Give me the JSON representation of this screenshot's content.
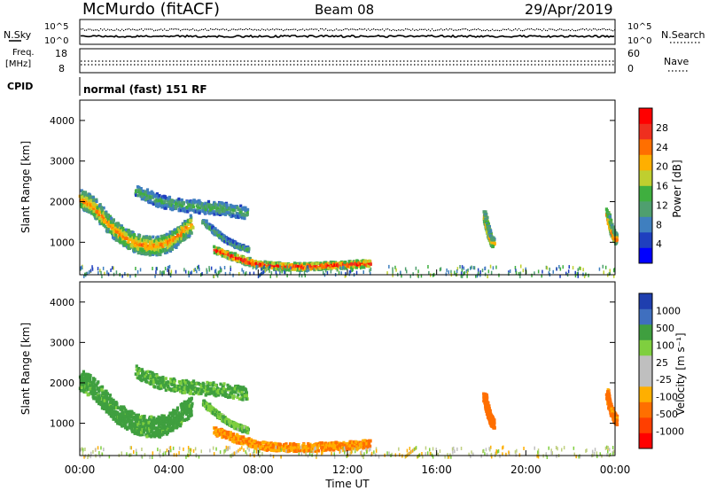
{
  "header": {
    "station": "McMurdo (fitACF)",
    "beam": "Beam 08",
    "date": "29/Apr/2019"
  },
  "top_panels": {
    "nsky_label": "N.Sky",
    "nsky_ticks": [
      "10^5",
      "10^0"
    ],
    "nsearch_label": "N.Search",
    "nsearch_ticks": [
      "10^5",
      "10^0"
    ],
    "freq_label": [
      "Freq.",
      "[MHz]"
    ],
    "freq_ticks": [
      "18",
      "8"
    ],
    "nave_label": "Nave",
    "nave_ticks": [
      "60",
      "0"
    ],
    "cpid_label": "CPID",
    "cpid_text": "normal (fast) 151 RF"
  },
  "colors": {
    "power_scale": [
      "#0000ff",
      "#1f3fbf",
      "#3f7fbf",
      "#4f9f6f",
      "#3faf3f",
      "#bfcf2f",
      "#ffaf00",
      "#ff6f00",
      "#ef2f1f",
      "#ff0000"
    ],
    "velocity_scale": [
      "#ff0000",
      "#ff3f00",
      "#ff6f00",
      "#ffaf00",
      "#bfbfbf",
      "#bfbfbf",
      "#7fcf3f",
      "#3f9f3f",
      "#3f6fbf",
      "#1f3faf"
    ]
  },
  "chart_data": [
    {
      "type": "heatmap",
      "name": "Power",
      "ylabel": "Slant Range [km]",
      "ylim": [
        200,
        4500
      ],
      "yticks": [
        "1000",
        "2000",
        "3000",
        "4000"
      ],
      "xlim": [
        0,
        24
      ],
      "colorbar_label": "Power [dB]",
      "colorbar_ticks": [
        "4",
        "8",
        "12",
        "16",
        "20",
        "24",
        "28"
      ],
      "clim": [
        0,
        32
      ],
      "features": [
        {
          "label": "dawn arc",
          "t": [
            0.0,
            0.5,
            1.0,
            1.5,
            2.0,
            2.5,
            3.0,
            3.5,
            4.0,
            4.5,
            5.0
          ],
          "range": [
            2100,
            1950,
            1650,
            1350,
            1150,
            1000,
            950,
            950,
            1050,
            1250,
            1500
          ],
          "width_km": 450,
          "power": 20
        },
        {
          "label": "upper band",
          "t": [
            2.5,
            3.5,
            4.5,
            5.5,
            6.5,
            7.5
          ],
          "range": [
            2300,
            2050,
            1950,
            1900,
            1850,
            1750
          ],
          "width_km": 300,
          "power": 12
        },
        {
          "label": "near range arc",
          "t": [
            6.0,
            7.0,
            8.0,
            9.0,
            10.0,
            11.0,
            12.0,
            13.0
          ],
          "range": [
            850,
            650,
            480,
            440,
            430,
            460,
            480,
            520
          ],
          "width_km": 180,
          "power": 26
        },
        {
          "label": "descending trace",
          "t": [
            5.5,
            6.0,
            6.5,
            7.0,
            7.5
          ],
          "range": [
            1550,
            1300,
            1100,
            950,
            850
          ],
          "width_km": 120,
          "power": 12
        },
        {
          "label": "evening patch",
          "t": [
            18.1,
            18.2,
            18.3,
            18.4,
            18.5
          ],
          "range": [
            1700,
            1450,
            1250,
            1100,
            1000
          ],
          "width_km": 200,
          "power": 20
        },
        {
          "label": "late patch",
          "t": [
            23.6,
            23.75,
            23.9,
            24.0
          ],
          "range": [
            1750,
            1400,
            1200,
            1100
          ],
          "width_km": 220,
          "power": 22
        }
      ]
    },
    {
      "type": "heatmap",
      "name": "Velocity",
      "ylabel": "Slant Range [km]",
      "ylim": [
        200,
        4500
      ],
      "yticks": [
        "1000",
        "2000",
        "3000",
        "4000"
      ],
      "xlim": [
        0,
        24
      ],
      "xlabel": "Time UT",
      "xticks": [
        "00:00",
        "04:00",
        "08:00",
        "12:00",
        "16:00",
        "20:00",
        "00:00"
      ],
      "colorbar_label": "Velocity [m s⁻¹]",
      "colorbar_ticks": [
        "-1000",
        "-500",
        "-100",
        "-25",
        "25",
        "100",
        "500",
        "1000"
      ],
      "clim": [
        -1200,
        1200
      ],
      "features": [
        {
          "label": "dawn arc",
          "t": [
            0.0,
            0.5,
            1.0,
            1.5,
            2.0,
            2.5,
            3.0,
            3.5,
            4.0,
            4.5,
            5.0
          ],
          "range": [
            2100,
            1950,
            1650,
            1350,
            1150,
            1000,
            950,
            950,
            1050,
            1250,
            1500
          ],
          "width_km": 500,
          "velocity": 150
        },
        {
          "label": "upper band",
          "t": [
            2.5,
            3.5,
            4.5,
            5.5,
            6.5,
            7.5
          ],
          "range": [
            2300,
            2050,
            1950,
            1900,
            1850,
            1750
          ],
          "width_km": 320,
          "velocity": 120
        },
        {
          "label": "near range arc",
          "t": [
            6.0,
            7.0,
            8.0,
            9.0,
            10.0,
            11.0,
            12.0,
            13.0
          ],
          "range": [
            850,
            650,
            480,
            440,
            430,
            460,
            480,
            520
          ],
          "width_km": 200,
          "velocity": -100
        },
        {
          "label": "descending trace",
          "t": [
            5.5,
            6.0,
            6.5,
            7.0,
            7.5
          ],
          "range": [
            1550,
            1300,
            1100,
            950,
            850
          ],
          "width_km": 130,
          "velocity": 80
        },
        {
          "label": "evening patch",
          "t": [
            18.1,
            18.2,
            18.3,
            18.4,
            18.5
          ],
          "range": [
            1700,
            1450,
            1250,
            1100,
            1000
          ],
          "width_km": 220,
          "velocity": -200
        },
        {
          "label": "late patch",
          "t": [
            23.6,
            23.75,
            23.9,
            24.0
          ],
          "range": [
            1750,
            1400,
            1200,
            1100
          ],
          "width_km": 230,
          "velocity": -150
        }
      ]
    }
  ]
}
